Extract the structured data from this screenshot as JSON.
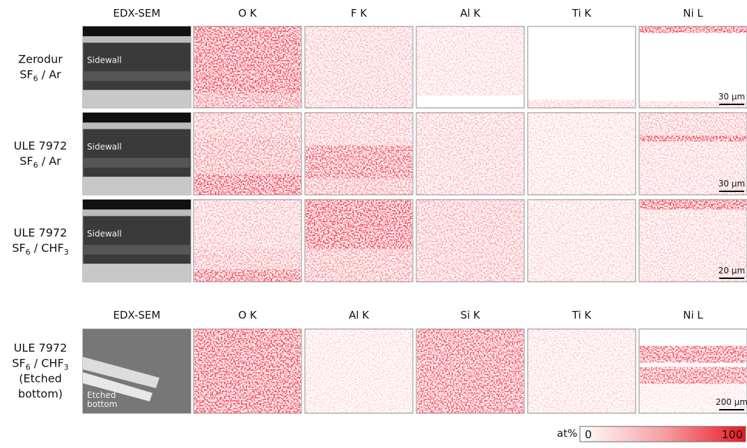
{
  "top_headers": [
    "EDX-SEM",
    "O K",
    "F K",
    "Al K",
    "Ti K",
    "Ni L"
  ],
  "bottom_headers": [
    "EDX-SEM",
    "O K",
    "Al K",
    "Si K",
    "Ti K",
    "Ni L"
  ],
  "rows": [
    {
      "label_lines": [
        [
          {
            "text": "Zerodur"
          }
        ],
        [
          {
            "text": "SF"
          },
          {
            "text": "6",
            "sub": true
          },
          {
            "text": " / Ar"
          }
        ]
      ],
      "overlay": [
        "Sidewall"
      ],
      "scale_bar": "30 µm"
    },
    {
      "label_lines": [
        [
          {
            "text": "ULE 7972"
          }
        ],
        [
          {
            "text": "SF"
          },
          {
            "text": "6",
            "sub": true
          },
          {
            "text": " / Ar"
          }
        ]
      ],
      "overlay": [
        "Sidewall"
      ],
      "scale_bar": "30 µm"
    },
    {
      "label_lines": [
        [
          {
            "text": "ULE 7972"
          }
        ],
        [
          {
            "text": "SF"
          },
          {
            "text": "6",
            "sub": true
          },
          {
            "text": " / CHF"
          },
          {
            "text": "3",
            "sub": true
          }
        ]
      ],
      "overlay": [
        "Sidewall"
      ],
      "scale_bar": "20 µm"
    },
    {
      "label_lines": [
        [
          {
            "text": "ULE 7972"
          }
        ],
        [
          {
            "text": "SF"
          },
          {
            "text": "6",
            "sub": true
          },
          {
            "text": " / CHF"
          },
          {
            "text": "3",
            "sub": true
          }
        ],
        [
          {
            "text": "(Etched"
          }
        ],
        [
          {
            "text": "bottom)"
          }
        ]
      ],
      "overlay": [
        "Etched",
        "bottom"
      ],
      "scale_bar": "200 µm"
    }
  ],
  "colorbar": {
    "label": "at%",
    "min_label": "0",
    "max_label": "100"
  }
}
